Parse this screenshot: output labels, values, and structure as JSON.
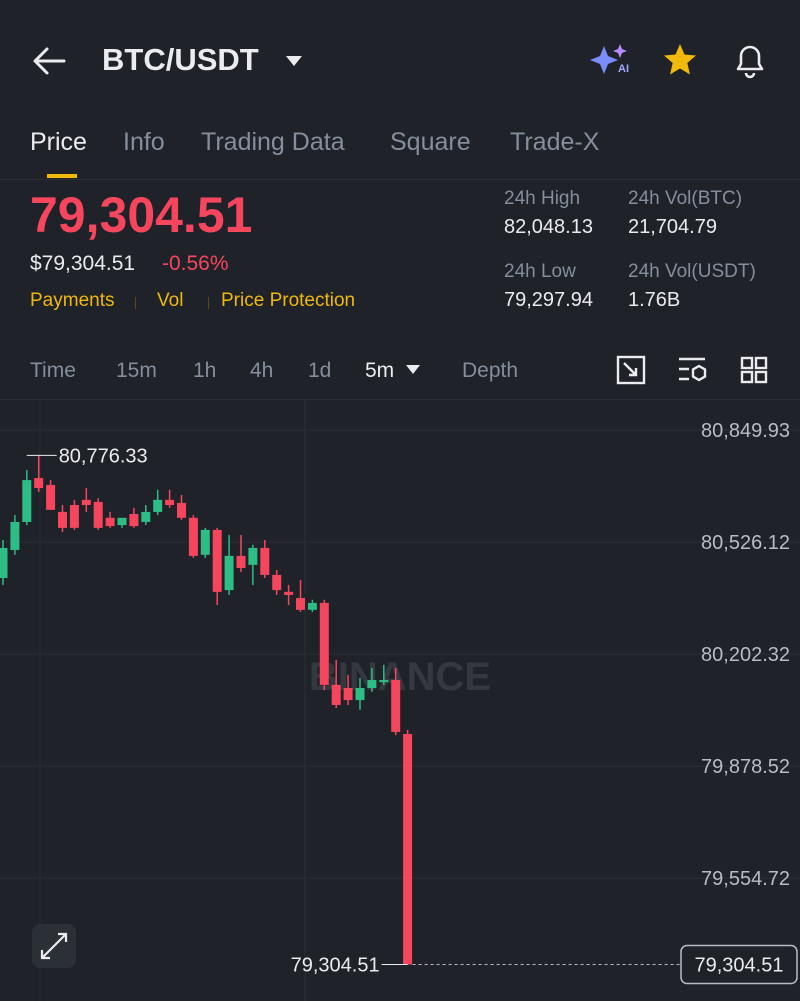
{
  "header": {
    "pair": "BTC/USDT",
    "ai_badge": "AI"
  },
  "tabs": [
    "Price",
    "Info",
    "Trading Data",
    "Square",
    "Trade-X"
  ],
  "price": {
    "last": "79,304.51",
    "usd": "$79,304.51",
    "change": "-0.56%",
    "tags": [
      "Payments",
      "Vol",
      "Price Protection"
    ]
  },
  "stats": [
    {
      "label": "24h High",
      "value": "82,048.13"
    },
    {
      "label": "24h Vol(BTC)",
      "value": "21,704.79"
    },
    {
      "label": "24h Low",
      "value": "79,297.94"
    },
    {
      "label": "24h Vol(USDT)",
      "value": "1.76B"
    }
  ],
  "intervals": [
    "Time",
    "15m",
    "1h",
    "4h",
    "1d",
    "5m",
    "Depth"
  ],
  "chart_data": {
    "type": "candlestick",
    "watermark": "BINANCE",
    "up_color": "#2ebd85",
    "down_color": "#f6465d",
    "ylim": [
      79199.1,
      80936.6
    ],
    "yticks": [
      {
        "value": 80849.93,
        "label": "80,849.93"
      },
      {
        "value": 80526.12,
        "label": "80,526.12"
      },
      {
        "value": 80202.32,
        "label": "80,202.32"
      },
      {
        "value": 79878.52,
        "label": "79,878.52"
      },
      {
        "value": 79554.72,
        "label": "79,554.72"
      }
    ],
    "grid": true,
    "open": [
      80422,
      80503,
      80584,
      80711,
      80691,
      80613,
      80633,
      80648,
      80642,
      80596,
      80575,
      80607,
      80584,
      80613,
      80648,
      80639,
      80596,
      80489,
      80561,
      80387,
      80486,
      80460,
      80509,
      80431,
      80382,
      80364,
      80330,
      80350,
      80113,
      80104,
      80069,
      80104,
      80121,
      80127,
      79971
    ],
    "high": [
      80532,
      80604,
      80734,
      80776.33,
      80705,
      80633,
      80648,
      80682,
      80653,
      80613,
      80596,
      80625,
      80633,
      80677,
      80677,
      80662,
      80604,
      80567,
      80567,
      80546,
      80546,
      80518,
      80532,
      80445,
      80402,
      80416,
      80359,
      80359,
      80185,
      80142,
      80133,
      80162,
      80171,
      80162,
      79983
    ],
    "low": [
      80402,
      80489,
      80575,
      80671,
      80619,
      80555,
      80561,
      80613,
      80561,
      80567,
      80567,
      80567,
      80575,
      80604,
      80625,
      80590,
      80480,
      80480,
      80344,
      80373,
      80439,
      80402,
      80422,
      80373,
      80344,
      80324,
      80324,
      80098,
      80046,
      80055,
      80041,
      80093,
      80113,
      79968,
      79304.51
    ],
    "close": [
      80509,
      80584,
      80705,
      80682,
      80619,
      80567,
      80567,
      80633,
      80567,
      80572,
      80596,
      80572,
      80613,
      80648,
      80633,
      80596,
      80486,
      80561,
      80382,
      80486,
      80451,
      80509,
      80431,
      80387,
      80373,
      80330,
      80350,
      80113,
      80055,
      80069,
      80104,
      80127,
      80127,
      79977,
      79304.51
    ],
    "annotations": [
      {
        "value": 80776.33,
        "label": "80,776.33"
      },
      {
        "value": 79304.51,
        "label": "79,304.51"
      }
    ],
    "last_price": {
      "value": 79304.51,
      "label": "79,304.51"
    }
  }
}
